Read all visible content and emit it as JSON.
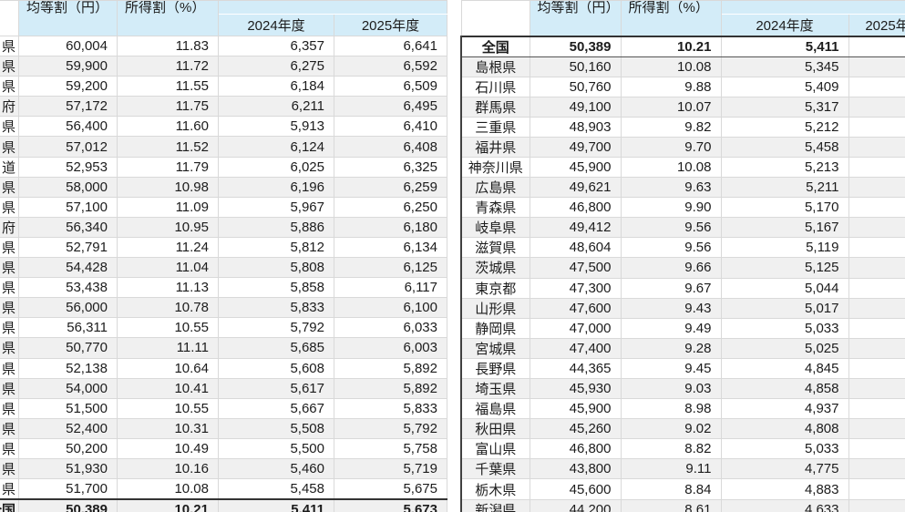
{
  "header": {
    "col_equal": "均等割（円）",
    "col_income": "所得割（%）",
    "col_2024": "2024年度",
    "col_2025": "2025年度"
  },
  "colors": {
    "header_bg": "#d3ecf8",
    "stripe": "#f0f0f0",
    "dark_border": "#333333",
    "cell_border": "#d9d9d9"
  },
  "left_table": {
    "rows": [
      {
        "name": "県",
        "equal": "60,004",
        "income": "11.83",
        "y2024": "6,357",
        "y2025": "6,641",
        "bold": false
      },
      {
        "name": "県",
        "equal": "59,900",
        "income": "11.72",
        "y2024": "6,275",
        "y2025": "6,592",
        "bold": false
      },
      {
        "name": "県",
        "equal": "59,200",
        "income": "11.55",
        "y2024": "6,184",
        "y2025": "6,509",
        "bold": false
      },
      {
        "name": "府",
        "equal": "57,172",
        "income": "11.75",
        "y2024": "6,211",
        "y2025": "6,495",
        "bold": false
      },
      {
        "name": "県",
        "equal": "56,400",
        "income": "11.60",
        "y2024": "5,913",
        "y2025": "6,410",
        "bold": false
      },
      {
        "name": "県",
        "equal": "57,012",
        "income": "11.52",
        "y2024": "6,124",
        "y2025": "6,408",
        "bold": false
      },
      {
        "name": "道",
        "equal": "52,953",
        "income": "11.79",
        "y2024": "6,025",
        "y2025": "6,325",
        "bold": false
      },
      {
        "name": "県",
        "equal": "58,000",
        "income": "10.98",
        "y2024": "6,196",
        "y2025": "6,259",
        "bold": false
      },
      {
        "name": "県",
        "equal": "57,100",
        "income": "11.09",
        "y2024": "5,967",
        "y2025": "6,250",
        "bold": false
      },
      {
        "name": "府",
        "equal": "56,340",
        "income": "10.95",
        "y2024": "5,886",
        "y2025": "6,180",
        "bold": false
      },
      {
        "name": "県",
        "equal": "52,791",
        "income": "11.24",
        "y2024": "5,812",
        "y2025": "6,134",
        "bold": false
      },
      {
        "name": "県",
        "equal": "54,428",
        "income": "11.04",
        "y2024": "5,808",
        "y2025": "6,125",
        "bold": false
      },
      {
        "name": "県",
        "equal": "53,438",
        "income": "11.13",
        "y2024": "5,858",
        "y2025": "6,117",
        "bold": false
      },
      {
        "name": "県",
        "equal": "56,000",
        "income": "10.78",
        "y2024": "5,833",
        "y2025": "6,100",
        "bold": false
      },
      {
        "name": "県",
        "equal": "56,311",
        "income": "10.55",
        "y2024": "5,792",
        "y2025": "6,033",
        "bold": false
      },
      {
        "name": "県",
        "equal": "50,770",
        "income": "11.11",
        "y2024": "5,685",
        "y2025": "6,003",
        "bold": false
      },
      {
        "name": "県",
        "equal": "52,138",
        "income": "10.64",
        "y2024": "5,608",
        "y2025": "5,892",
        "bold": false
      },
      {
        "name": "県",
        "equal": "54,000",
        "income": "10.41",
        "y2024": "5,617",
        "y2025": "5,892",
        "bold": false
      },
      {
        "name": "県",
        "equal": "51,500",
        "income": "10.55",
        "y2024": "5,667",
        "y2025": "5,833",
        "bold": false
      },
      {
        "name": "県",
        "equal": "52,400",
        "income": "10.31",
        "y2024": "5,508",
        "y2025": "5,792",
        "bold": false
      },
      {
        "name": "県",
        "equal": "50,200",
        "income": "10.49",
        "y2024": "5,500",
        "y2025": "5,758",
        "bold": false
      },
      {
        "name": "県",
        "equal": "51,930",
        "income": "10.16",
        "y2024": "5,460",
        "y2025": "5,719",
        "bold": false
      },
      {
        "name": "県",
        "equal": "51,700",
        "income": "10.08",
        "y2024": "5,458",
        "y2025": "5,675",
        "bold": false
      },
      {
        "name": "全国",
        "equal": "50,389",
        "income": "10.21",
        "y2024": "5,411",
        "y2025": "5,673",
        "bold": true
      }
    ]
  },
  "right_table": {
    "rows": [
      {
        "name": "全国",
        "equal": "50,389",
        "income": "10.21",
        "y2024": "5,411",
        "y2025": "",
        "bold": true
      },
      {
        "name": "島根県",
        "equal": "50,160",
        "income": "10.08",
        "y2024": "5,345",
        "y2025": "",
        "bold": false
      },
      {
        "name": "石川県",
        "equal": "50,760",
        "income": "9.88",
        "y2024": "5,409",
        "y2025": "",
        "bold": false
      },
      {
        "name": "群馬県",
        "equal": "49,100",
        "income": "10.07",
        "y2024": "5,317",
        "y2025": "",
        "bold": false
      },
      {
        "name": "三重県",
        "equal": "48,903",
        "income": "9.82",
        "y2024": "5,212",
        "y2025": "",
        "bold": false
      },
      {
        "name": "福井県",
        "equal": "49,700",
        "income": "9.70",
        "y2024": "5,458",
        "y2025": "",
        "bold": false
      },
      {
        "name": "神奈川県",
        "equal": "45,900",
        "income": "10.08",
        "y2024": "5,213",
        "y2025": "",
        "bold": false
      },
      {
        "name": "広島県",
        "equal": "49,621",
        "income": "9.63",
        "y2024": "5,211",
        "y2025": "",
        "bold": false
      },
      {
        "name": "青森県",
        "equal": "46,800",
        "income": "9.90",
        "y2024": "5,170",
        "y2025": "",
        "bold": false
      },
      {
        "name": "岐阜県",
        "equal": "49,412",
        "income": "9.56",
        "y2024": "5,167",
        "y2025": "",
        "bold": false
      },
      {
        "name": "滋賀県",
        "equal": "48,604",
        "income": "9.56",
        "y2024": "5,119",
        "y2025": "",
        "bold": false
      },
      {
        "name": "茨城県",
        "equal": "47,500",
        "income": "9.66",
        "y2024": "5,125",
        "y2025": "",
        "bold": false
      },
      {
        "name": "東京都",
        "equal": "47,300",
        "income": "9.67",
        "y2024": "5,044",
        "y2025": "",
        "bold": false
      },
      {
        "name": "山形県",
        "equal": "47,600",
        "income": "9.43",
        "y2024": "5,017",
        "y2025": "",
        "bold": false
      },
      {
        "name": "静岡県",
        "equal": "47,000",
        "income": "9.49",
        "y2024": "5,033",
        "y2025": "",
        "bold": false
      },
      {
        "name": "宮城県",
        "equal": "47,400",
        "income": "9.28",
        "y2024": "5,025",
        "y2025": "",
        "bold": false
      },
      {
        "name": "長野県",
        "equal": "44,365",
        "income": "9.45",
        "y2024": "4,845",
        "y2025": "",
        "bold": false
      },
      {
        "name": "埼玉県",
        "equal": "45,930",
        "income": "9.03",
        "y2024": "4,858",
        "y2025": "",
        "bold": false
      },
      {
        "name": "福島県",
        "equal": "45,900",
        "income": "8.98",
        "y2024": "4,937",
        "y2025": "",
        "bold": false
      },
      {
        "name": "秋田県",
        "equal": "45,260",
        "income": "9.02",
        "y2024": "4,808",
        "y2025": "",
        "bold": false
      },
      {
        "name": "富山県",
        "equal": "46,800",
        "income": "8.82",
        "y2024": "5,033",
        "y2025": "",
        "bold": false
      },
      {
        "name": "千葉県",
        "equal": "43,800",
        "income": "9.11",
        "y2024": "4,775",
        "y2025": "",
        "bold": false
      },
      {
        "name": "栃木県",
        "equal": "45,600",
        "income": "8.84",
        "y2024": "4,883",
        "y2025": "",
        "bold": false
      },
      {
        "name": "新潟県",
        "equal": "44,200",
        "income": "8.61",
        "y2024": "4,633",
        "y2025": "",
        "bold": false
      }
    ]
  }
}
